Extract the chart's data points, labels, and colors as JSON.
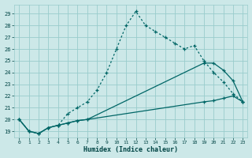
{
  "xlabel": "Humidex (Indice chaleur)",
  "ylabel": "",
  "bg_color": "#cce8e8",
  "grid_color": "#99cccc",
  "line_color": "#006666",
  "ylim": [
    18.5,
    29.8
  ],
  "xlim": [
    -0.5,
    23.5
  ],
  "yticks": [
    19,
    20,
    21,
    22,
    23,
    24,
    25,
    26,
    27,
    28,
    29
  ],
  "xticks": [
    0,
    1,
    2,
    3,
    4,
    5,
    6,
    7,
    8,
    9,
    10,
    11,
    12,
    13,
    14,
    15,
    16,
    17,
    18,
    19,
    20,
    21,
    22,
    23
  ],
  "line1_x": [
    0,
    1,
    2,
    3,
    4,
    5,
    6,
    7,
    8,
    9,
    10,
    11,
    12,
    13,
    14,
    15,
    16,
    17,
    18,
    19,
    20,
    21,
    22,
    23
  ],
  "line1_y": [
    20.0,
    19.0,
    18.8,
    19.3,
    19.5,
    20.5,
    21.0,
    21.5,
    22.5,
    24.0,
    26.0,
    28.0,
    29.2,
    28.0,
    27.5,
    27.0,
    26.5,
    26.0,
    26.3,
    25.0,
    24.0,
    23.2,
    22.2,
    21.5
  ],
  "line2_x": [
    0,
    1,
    2,
    3,
    4,
    5,
    6,
    7,
    19,
    20,
    21,
    22,
    23
  ],
  "line2_y": [
    20.0,
    19.0,
    18.8,
    19.3,
    19.5,
    19.7,
    19.9,
    20.0,
    24.8,
    24.8,
    24.2,
    23.3,
    21.5
  ],
  "line3_x": [
    0,
    1,
    2,
    3,
    4,
    5,
    6,
    7,
    19,
    20,
    21,
    22,
    23
  ],
  "line3_y": [
    20.0,
    19.0,
    18.8,
    19.3,
    19.5,
    19.7,
    19.9,
    20.0,
    21.5,
    21.6,
    21.8,
    22.0,
    21.5
  ]
}
